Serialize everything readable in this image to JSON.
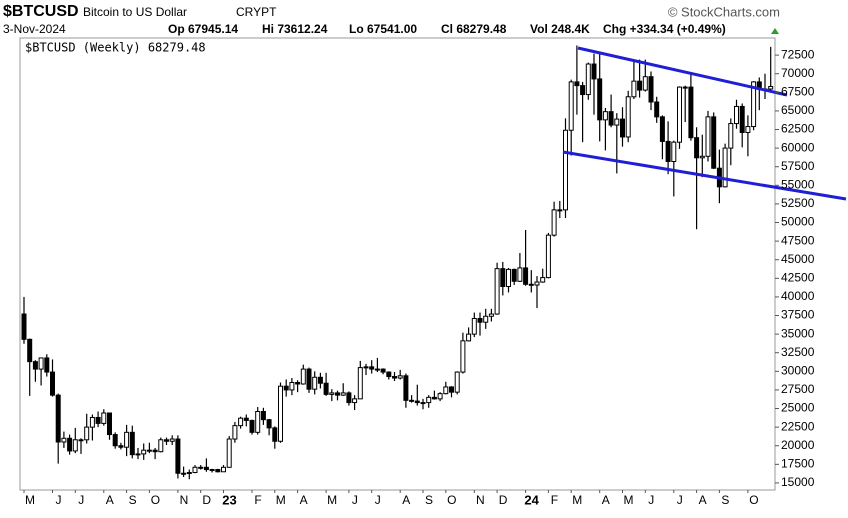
{
  "chart_data": {
    "type": "candlestick",
    "title": "$BTCUSD",
    "subtitle": "Bitcoin to US Dollar",
    "exchange": "CRYPT",
    "source": "© StockCharts.com",
    "date": "3-Nov-2024",
    "stats": [
      "Op 67945.14",
      "Hi 73612.24",
      "Lo 67541.00",
      "Cl 68279.48",
      "Vol 248.4K",
      "Chg +334.34 (+0.49%)"
    ],
    "legend": "$BTCUSD (Weekly) 68279.48",
    "categories": [
      "M",
      null,
      null,
      null,
      null,
      "J",
      null,
      null,
      null,
      "J",
      null,
      null,
      null,
      null,
      "A",
      null,
      null,
      null,
      "S",
      null,
      null,
      null,
      "O",
      null,
      null,
      null,
      null,
      "N",
      null,
      null,
      null,
      "D",
      null,
      null,
      null,
      "23",
      null,
      null,
      null,
      null,
      "F",
      null,
      null,
      null,
      "M",
      null,
      null,
      null,
      "A",
      null,
      null,
      null,
      null,
      "M",
      null,
      null,
      null,
      "J",
      null,
      null,
      null,
      "J",
      null,
      null,
      null,
      null,
      "A",
      null,
      null,
      null,
      "S",
      null,
      null,
      null,
      "O",
      null,
      null,
      null,
      null,
      "N",
      null,
      null,
      null,
      "D",
      null,
      null,
      null,
      null,
      "24",
      null,
      null,
      null,
      "F",
      null,
      null,
      null,
      "M",
      null,
      null,
      null,
      null,
      "A",
      null,
      null,
      null,
      "M",
      null,
      null,
      null,
      "J",
      null,
      null,
      null,
      null,
      "J",
      null,
      null,
      null,
      "A",
      null,
      null,
      null,
      "S",
      null,
      null,
      null,
      null,
      "O",
      null,
      null,
      null,
      null
    ],
    "open": [
      37700,
      34300,
      31300,
      30300,
      31800,
      29900,
      26800,
      20500,
      21000,
      19300,
      20800,
      20800,
      22500,
      23800,
      23000,
      24400,
      21500,
      20000,
      19800,
      21800,
      18800,
      18900,
      19400,
      19400,
      19200,
      20800,
      20600,
      20900,
      16300,
      16300,
      16400,
      17100,
      17100,
      16800,
      16800,
      16500,
      17100,
      20900,
      22700,
      23700,
      23400,
      21800,
      24600,
      23500,
      22400,
      20600,
      28000,
      27500,
      28500,
      28300,
      30300,
      27600,
      29200,
      28400,
      26900,
      27100,
      26800,
      27100,
      25800,
      26300,
      30500,
      30600,
      30300,
      30300,
      29900,
      29300,
      29100,
      29400,
      26100,
      26000,
      25800,
      25800,
      26500,
      26300,
      27000,
      27900,
      27200,
      29900,
      34100,
      35000,
      37100,
      36600,
      37400,
      37700,
      43800,
      41400,
      43700,
      42100,
      43900,
      41700,
      41600,
      42000,
      42600,
      48300,
      51700,
      51700,
      62400,
      68900,
      68400,
      67200,
      71300,
      69300,
      63800,
      64900,
      63100,
      63900,
      61500,
      66900,
      69000,
      67800,
      69600,
      66200,
      64200,
      60900,
      58200,
      60800,
      68200,
      68200,
      61400,
      58700,
      58900,
      64200,
      57300,
      54800,
      60000,
      63300,
      65600,
      62100,
      62900,
      68900,
      67900,
      67945.14
    ],
    "high": [
      40000,
      34400,
      31500,
      31500,
      32300,
      31600,
      27000,
      21900,
      21500,
      22400,
      21000,
      24300,
      24200,
      24600,
      24900,
      24400,
      21800,
      20400,
      22800,
      22700,
      19700,
      20300,
      20400,
      19700,
      21100,
      21100,
      21400,
      21400,
      17200,
      16800,
      17400,
      17400,
      18300,
      16900,
      16900,
      17400,
      21300,
      23200,
      23900,
      24200,
      23500,
      25200,
      25100,
      23600,
      22600,
      28500,
      28900,
      29100,
      28800,
      30900,
      30500,
      30000,
      29800,
      29800,
      27600,
      27400,
      28400,
      27300,
      26800,
      31400,
      31000,
      31500,
      31800,
      30400,
      30000,
      29900,
      30200,
      29700,
      26800,
      28200,
      26300,
      26800,
      27400,
      27200,
      28600,
      28000,
      30000,
      35200,
      35900,
      37900,
      37900,
      38400,
      38400,
      44600,
      44700,
      43900,
      43800,
      45900,
      49000,
      43600,
      42800,
      43800,
      48600,
      52800,
      52900,
      64000,
      69200,
      73800,
      68900,
      71500,
      72700,
      72800,
      65400,
      67200,
      64700,
      65500,
      67700,
      71900,
      71900,
      71900,
      70300,
      66900,
      64400,
      63600,
      61000,
      68300,
      68400,
      70000,
      62800,
      61800,
      65000,
      64800,
      59800,
      60600,
      64000,
      66500,
      66000,
      64400,
      69000,
      69500,
      70000,
      73612.24
    ],
    "low": [
      33700,
      26700,
      28600,
      28100,
      29300,
      26600,
      17600,
      19700,
      18800,
      19000,
      18900,
      20300,
      20700,
      22500,
      22700,
      20800,
      19600,
      19500,
      18600,
      18300,
      18200,
      18100,
      19000,
      18200,
      19100,
      20100,
      20100,
      15600,
      15800,
      15500,
      16300,
      16800,
      16500,
      16400,
      16400,
      16500,
      17100,
      20400,
      22300,
      22600,
      21500,
      21500,
      22800,
      21400,
      19600,
      20400,
      26600,
      26800,
      27200,
      28200,
      27100,
      26900,
      27700,
      26700,
      26000,
      26100,
      26700,
      25400,
      24800,
      26300,
      29500,
      29700,
      29900,
      29600,
      28900,
      28700,
      28900,
      25100,
      25800,
      25400,
      24900,
      25100,
      26200,
      26000,
      26900,
      26500,
      26900,
      29700,
      34000,
      34600,
      34800,
      35700,
      36700,
      37600,
      40200,
      40600,
      41600,
      42000,
      41500,
      40600,
      38500,
      41900,
      42500,
      48100,
      50600,
      50600,
      59000,
      64500,
      60800,
      66500,
      64500,
      60900,
      59700,
      62800,
      56600,
      60200,
      60800,
      66600,
      66800,
      67600,
      65100,
      63400,
      58500,
      56500,
      53500,
      59900,
      63500,
      61000,
      49100,
      56100,
      58200,
      57200,
      52600,
      54700,
      57700,
      62600,
      60100,
      58900,
      62400,
      65100,
      66600,
      67541
    ],
    "close": [
      34300,
      31300,
      30300,
      31800,
      29900,
      26800,
      20500,
      21000,
      19300,
      20800,
      20800,
      22500,
      23800,
      23000,
      24400,
      21500,
      20000,
      19800,
      21800,
      18800,
      18900,
      19400,
      19400,
      19200,
      20800,
      20600,
      20900,
      16300,
      16300,
      16400,
      17100,
      17100,
      16800,
      16800,
      16500,
      17100,
      20900,
      22700,
      23700,
      23400,
      21800,
      24600,
      23500,
      22400,
      20600,
      28000,
      27500,
      28500,
      28300,
      30300,
      27600,
      29200,
      28400,
      26900,
      27100,
      26800,
      27100,
      25800,
      26300,
      30500,
      30600,
      30300,
      30300,
      29900,
      29300,
      29100,
      29400,
      26100,
      26000,
      25800,
      25800,
      26500,
      26300,
      27000,
      27900,
      27200,
      29900,
      34100,
      35000,
      37100,
      36600,
      37400,
      37700,
      43800,
      41400,
      43700,
      42100,
      43900,
      41700,
      41600,
      42000,
      42600,
      48300,
      51700,
      51700,
      62400,
      68900,
      68400,
      67200,
      71300,
      69300,
      63800,
      64900,
      63100,
      63900,
      61500,
      66900,
      69000,
      67800,
      69600,
      66200,
      64200,
      60900,
      58200,
      60800,
      68200,
      68200,
      61400,
      58700,
      58900,
      64200,
      57300,
      54800,
      60000,
      63300,
      65600,
      62100,
      62900,
      68900,
      67900,
      67945.14,
      68279.48
    ],
    "up_color": "#ffffff",
    "down_color": "#000000",
    "color": "#000000",
    "ylim": [
      14050,
      74800
    ],
    "yticks": [
      15000,
      17500,
      20000,
      22500,
      25000,
      27500,
      30000,
      32500,
      35000,
      37500,
      40000,
      42500,
      45000,
      47500,
      50000,
      52500,
      55000,
      57500,
      60000,
      62500,
      65000,
      67500,
      70000,
      72500
    ]
  }
}
